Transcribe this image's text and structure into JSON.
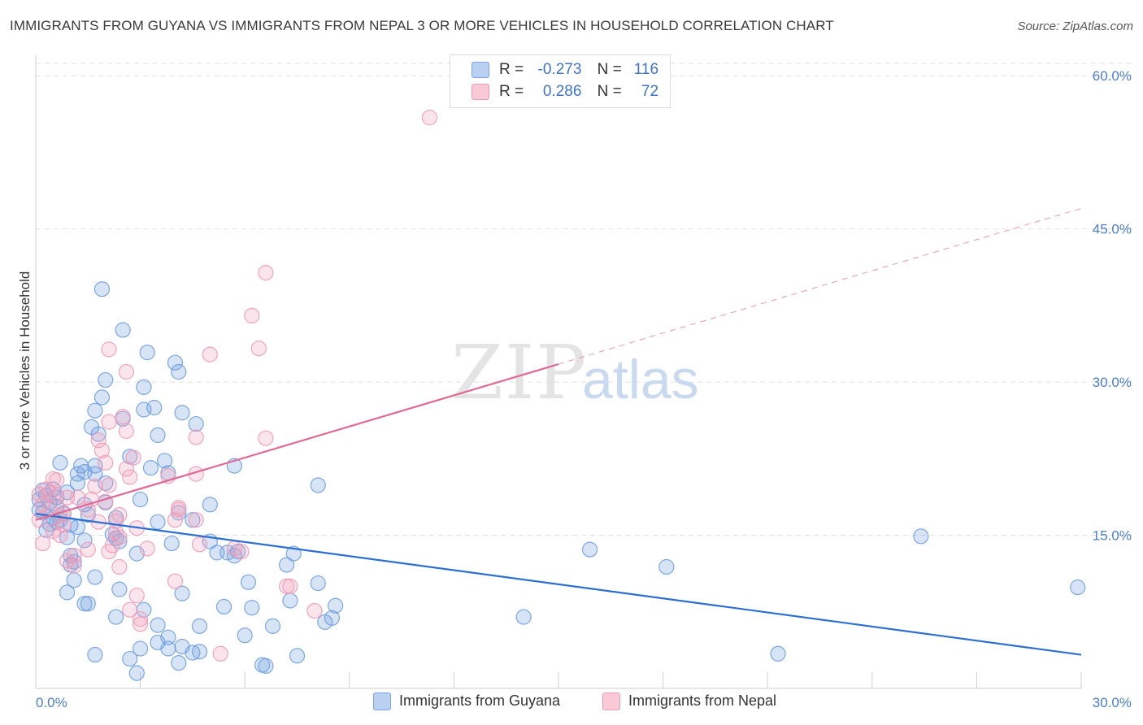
{
  "title": "IMMIGRANTS FROM GUYANA VS IMMIGRANTS FROM NEPAL 3 OR MORE VEHICLES IN HOUSEHOLD CORRELATION CHART",
  "source": "Source: ZipAtlas.com",
  "watermark": {
    "zip": "ZIP",
    "atlas": "atlas"
  },
  "colors": {
    "guyana": "#6f9fe0",
    "guyana_line": "#2d6fd0",
    "nepal": "#f2a0bc",
    "nepal_line": "#e06a95",
    "tick": "#4a7fc9"
  },
  "legend": {
    "rows": [
      {
        "series": "guyana",
        "r_label": "R =",
        "r_value": "-0.273",
        "n_label": "N =",
        "n_value": "116"
      },
      {
        "series": "nepal",
        "r_label": "R =",
        "r_value": "0.286",
        "n_label": "N =",
        "n_value": "72"
      }
    ]
  },
  "bottom_legend": [
    "Immigrants from Guyana",
    "Immigrants from Nepal"
  ],
  "chart_data": {
    "type": "scatter",
    "title": "IMMIGRANTS FROM GUYANA VS IMMIGRANTS FROM NEPAL 3 OR MORE VEHICLES IN HOUSEHOLD CORRELATION CHART",
    "xlabel": "",
    "ylabel": "3 or more Vehicles in Household",
    "xlim": [
      0,
      30
    ],
    "ylim": [
      0,
      62
    ],
    "x_tick_labels": [
      "0.0%",
      "30.0%"
    ],
    "y_ticks": [
      15,
      30,
      45,
      60
    ],
    "y_tick_labels": [
      "15.0%",
      "30.0%",
      "45.0%",
      "60.0%"
    ],
    "grid": true,
    "series": [
      {
        "name": "Immigrants from Guyana",
        "color": "guyana",
        "r": -0.273,
        "n": 116,
        "trend": {
          "x0": 0,
          "y0": 17.1,
          "x1": 30,
          "y1": 3.3,
          "solid_until": 30
        },
        "points": [
          [
            1.9,
            39.1
          ],
          [
            2.5,
            35.1
          ],
          [
            3.2,
            32.9
          ],
          [
            4.0,
            31.9
          ],
          [
            2.0,
            30.2
          ],
          [
            3.1,
            29.5
          ],
          [
            1.9,
            28.5
          ],
          [
            4.1,
            31.0
          ],
          [
            3.4,
            27.5
          ],
          [
            1.7,
            27.2
          ],
          [
            3.1,
            27.3
          ],
          [
            2.5,
            26.4
          ],
          [
            4.2,
            27.0
          ],
          [
            4.6,
            25.9
          ],
          [
            1.6,
            25.6
          ],
          [
            1.8,
            24.9
          ],
          [
            3.5,
            24.8
          ],
          [
            0.7,
            22.1
          ],
          [
            2.7,
            22.7
          ],
          [
            1.7,
            21.8
          ],
          [
            3.7,
            22.3
          ],
          [
            1.3,
            21.8
          ],
          [
            3.3,
            21.6
          ],
          [
            5.7,
            21.8
          ],
          [
            1.4,
            21.2
          ],
          [
            1.2,
            21.0
          ],
          [
            3.8,
            21.1
          ],
          [
            1.7,
            21.0
          ],
          [
            2.0,
            20.1
          ],
          [
            1.2,
            20.1
          ],
          [
            8.1,
            19.9
          ],
          [
            0.9,
            19.2
          ],
          [
            0.2,
            19.4
          ],
          [
            0.5,
            19.5
          ],
          [
            0.3,
            18.9
          ],
          [
            0.6,
            18.7
          ],
          [
            0.1,
            18.5
          ],
          [
            0.4,
            18.2
          ],
          [
            1.4,
            18.0
          ],
          [
            2.0,
            18.2
          ],
          [
            3.0,
            18.5
          ],
          [
            5.0,
            18.0
          ],
          [
            0.6,
            17.8
          ],
          [
            0.1,
            17.5
          ],
          [
            0.2,
            17.2
          ],
          [
            0.8,
            17.1
          ],
          [
            1.5,
            17.0
          ],
          [
            4.1,
            17.2
          ],
          [
            0.5,
            16.7
          ],
          [
            0.7,
            16.5
          ],
          [
            0.6,
            16.3
          ],
          [
            2.3,
            16.7
          ],
          [
            3.5,
            16.3
          ],
          [
            4.5,
            16.5
          ],
          [
            0.4,
            16.1
          ],
          [
            1.0,
            16.0
          ],
          [
            0.9,
            14.8
          ],
          [
            1.4,
            14.5
          ],
          [
            2.3,
            14.7
          ],
          [
            2.4,
            14.4
          ],
          [
            5.0,
            14.4
          ],
          [
            5.2,
            13.3
          ],
          [
            5.5,
            13.3
          ],
          [
            5.7,
            13.0
          ],
          [
            5.8,
            13.4
          ],
          [
            7.4,
            13.2
          ],
          [
            1.0,
            13.0
          ],
          [
            2.9,
            13.2
          ],
          [
            1.1,
            12.4
          ],
          [
            1.0,
            12.1
          ],
          [
            7.2,
            12.1
          ],
          [
            15.9,
            13.6
          ],
          [
            25.4,
            14.9
          ],
          [
            1.7,
            10.9
          ],
          [
            1.1,
            10.6
          ],
          [
            6.1,
            10.4
          ],
          [
            8.1,
            10.3
          ],
          [
            18.1,
            11.9
          ],
          [
            29.9,
            9.9
          ],
          [
            0.9,
            9.4
          ],
          [
            2.4,
            9.7
          ],
          [
            4.2,
            9.3
          ],
          [
            7.3,
            8.6
          ],
          [
            1.4,
            8.3
          ],
          [
            1.5,
            8.3
          ],
          [
            5.4,
            8.0
          ],
          [
            6.2,
            7.9
          ],
          [
            8.6,
            8.1
          ],
          [
            3.1,
            7.7
          ],
          [
            2.3,
            7.0
          ],
          [
            8.3,
            6.5
          ],
          [
            8.5,
            6.9
          ],
          [
            14.0,
            7.0
          ],
          [
            3.5,
            6.2
          ],
          [
            4.7,
            6.1
          ],
          [
            6.8,
            6.1
          ],
          [
            3.8,
            5.0
          ],
          [
            3.8,
            3.9
          ],
          [
            3.0,
            3.9
          ],
          [
            4.5,
            3.5
          ],
          [
            4.7,
            3.6
          ],
          [
            1.7,
            3.3
          ],
          [
            2.7,
            2.9
          ],
          [
            7.5,
            3.2
          ],
          [
            4.1,
            2.5
          ],
          [
            6.5,
            2.3
          ],
          [
            6.6,
            2.2
          ],
          [
            21.3,
            3.4
          ],
          [
            2.9,
            1.5
          ],
          [
            3.5,
            4.5
          ],
          [
            4.2,
            4.1
          ],
          [
            6.0,
            5.2
          ],
          [
            1.2,
            15.8
          ],
          [
            3.9,
            14.2
          ],
          [
            0.3,
            15.5
          ],
          [
            2.2,
            15.1
          ]
        ]
      },
      {
        "name": "Immigrants from Nepal",
        "color": "nepal",
        "r": 0.286,
        "n": 72,
        "trend": {
          "x0": 0,
          "y0": 16.5,
          "x1": 30,
          "y1": 47.0,
          "solid_until": 15
        },
        "points": [
          [
            11.3,
            55.9
          ],
          [
            6.6,
            40.7
          ],
          [
            6.2,
            36.5
          ],
          [
            6.4,
            33.3
          ],
          [
            2.1,
            33.2
          ],
          [
            5.0,
            32.7
          ],
          [
            2.6,
            31.0
          ],
          [
            2.5,
            26.6
          ],
          [
            2.1,
            26.1
          ],
          [
            2.6,
            25.2
          ],
          [
            6.6,
            24.5
          ],
          [
            4.6,
            24.6
          ],
          [
            1.8,
            24.3
          ],
          [
            1.9,
            23.3
          ],
          [
            2.8,
            22.6
          ],
          [
            2.0,
            22.1
          ],
          [
            2.6,
            21.5
          ],
          [
            4.6,
            21.0
          ],
          [
            3.8,
            20.8
          ],
          [
            0.5,
            20.5
          ],
          [
            0.6,
            20.4
          ],
          [
            2.7,
            20.7
          ],
          [
            2.1,
            19.9
          ],
          [
            1.7,
            19.8
          ],
          [
            0.3,
            19.5
          ],
          [
            0.4,
            19.1
          ],
          [
            0.1,
            19.0
          ],
          [
            0.6,
            18.9
          ],
          [
            0.9,
            18.7
          ],
          [
            1.2,
            18.7
          ],
          [
            1.6,
            18.5
          ],
          [
            2.0,
            18.3
          ],
          [
            0.2,
            18.0
          ],
          [
            0.4,
            17.6
          ],
          [
            1.5,
            17.5
          ],
          [
            0.8,
            17.2
          ],
          [
            2.4,
            17.0
          ],
          [
            4.1,
            17.5
          ],
          [
            0.7,
            16.9
          ],
          [
            0.1,
            16.5
          ],
          [
            1.8,
            16.3
          ],
          [
            4.0,
            16.5
          ],
          [
            4.6,
            16.5
          ],
          [
            0.5,
            15.4
          ],
          [
            2.3,
            15.3
          ],
          [
            0.7,
            15.0
          ],
          [
            2.4,
            14.8
          ],
          [
            0.2,
            14.2
          ],
          [
            4.7,
            14.1
          ],
          [
            2.2,
            14.0
          ],
          [
            5.7,
            13.7
          ],
          [
            3.2,
            13.7
          ],
          [
            1.5,
            13.6
          ],
          [
            2.1,
            13.4
          ],
          [
            1.1,
            13.0
          ],
          [
            5.9,
            13.4
          ],
          [
            0.9,
            12.5
          ],
          [
            2.4,
            11.9
          ],
          [
            4.0,
            10.5
          ],
          [
            7.2,
            10.0
          ],
          [
            7.3,
            10.0
          ],
          [
            2.9,
            9.1
          ],
          [
            2.7,
            7.7
          ],
          [
            8.0,
            7.6
          ],
          [
            3.0,
            6.8
          ],
          [
            5.3,
            3.4
          ],
          [
            3.0,
            6.3
          ],
          [
            1.1,
            12.0
          ],
          [
            0.8,
            16.0
          ],
          [
            2.9,
            15.7
          ],
          [
            4.1,
            17.7
          ],
          [
            2.3,
            16.4
          ]
        ]
      }
    ]
  }
}
